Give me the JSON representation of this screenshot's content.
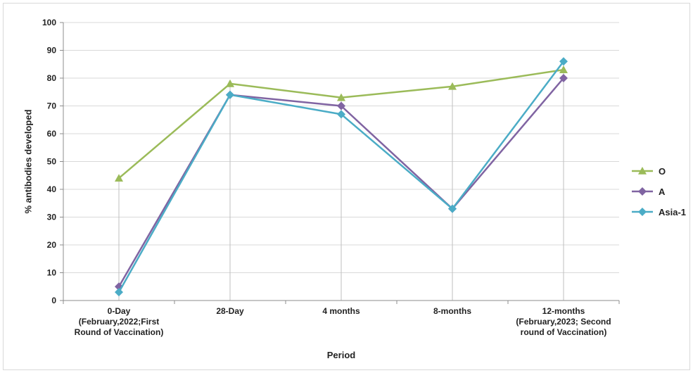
{
  "chart_data": {
    "type": "line",
    "title": "",
    "xlabel": "Period",
    "ylabel": "% antibodies developed",
    "ylim": [
      0,
      100
    ],
    "yticks": [
      0,
      10,
      20,
      30,
      40,
      50,
      60,
      70,
      80,
      90,
      100
    ],
    "categories": [
      [
        "0-Day",
        "(February,2022;First",
        "Round of Vaccination)"
      ],
      [
        "28-Day"
      ],
      [
        "4 months"
      ],
      [
        "8-months"
      ],
      [
        "12-months",
        "(February,2023; Second",
        "round of Vaccination)"
      ]
    ],
    "series": [
      {
        "name": "O",
        "values": [
          44,
          78,
          73,
          77,
          83
        ],
        "color": "#9bbb59",
        "marker": "triangle"
      },
      {
        "name": "A",
        "values": [
          5,
          74,
          70,
          33,
          80
        ],
        "color": "#8064a2",
        "marker": "diamond"
      },
      {
        "name": "Asia-1",
        "values": [
          3,
          74,
          67,
          33,
          86
        ],
        "color": "#4bacc6",
        "marker": "diamond"
      }
    ],
    "grid": true,
    "legend_position": "right"
  }
}
